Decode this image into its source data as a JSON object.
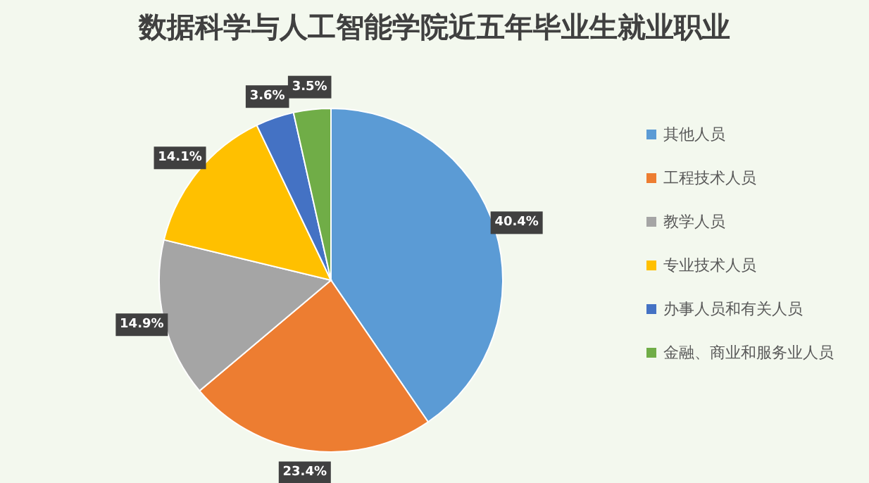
{
  "chart_data": {
    "type": "pie",
    "title": "数据科学与人工智能学院近五年毕业生就业职业",
    "categories": [
      "其他人员",
      "工程技术人员",
      "教学人员",
      "专业技术人员",
      "办事人员和有关人员",
      "金融、商业和服务业人员"
    ],
    "values": [
      40.4,
      23.4,
      14.9,
      14.1,
      3.6,
      3.5
    ],
    "value_labels": [
      "40.4%",
      "23.4%",
      "14.9%",
      "14.1%",
      "3.6%",
      "3.5%"
    ],
    "colors": [
      "#5b9bd5",
      "#ed7d31",
      "#a5a5a5",
      "#ffc000",
      "#4472c4",
      "#70ad47"
    ],
    "legend": "right"
  }
}
